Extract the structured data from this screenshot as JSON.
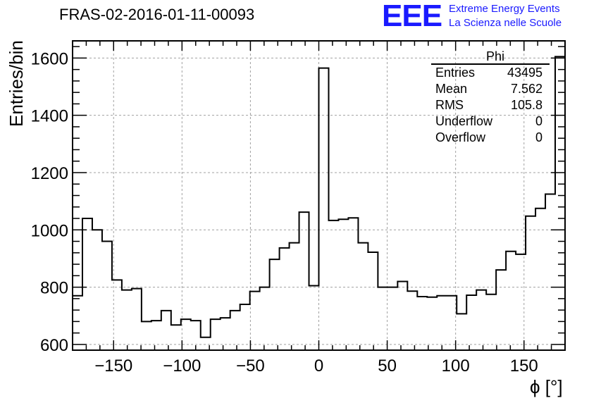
{
  "title": "FRAS-02-2016-01-11-00093",
  "logo": {
    "text": "EEE",
    "line1": "Extreme Energy Events",
    "line2": "La Scienza nelle Scuole"
  },
  "stats": {
    "title": "Phi",
    "rows": [
      {
        "label": "Entries",
        "value": "43495"
      },
      {
        "label": "Mean",
        "value": "7.562"
      },
      {
        "label": "RMS",
        "value": "105.8"
      },
      {
        "label": "Underflow",
        "value": "0"
      },
      {
        "label": "Overflow",
        "value": "0"
      }
    ]
  },
  "chart_data": {
    "type": "bar",
    "style": "step-histogram",
    "title": "FRAS-02-2016-01-11-00093",
    "xlabel": "ϕ [°]",
    "ylabel": "Entries/bin",
    "xlim": [
      -180,
      180
    ],
    "ylim": [
      580,
      1660
    ],
    "grid": true,
    "bin_width": 7.2,
    "bin_edges_start": -180,
    "x_ticks": [
      -150,
      -100,
      -50,
      0,
      50,
      100,
      150
    ],
    "y_ticks": [
      600,
      800,
      1000,
      1200,
      1400,
      1600
    ],
    "values": [
      770,
      1040,
      1000,
      960,
      825,
      790,
      795,
      680,
      683,
      718,
      668,
      688,
      683,
      625,
      688,
      693,
      718,
      740,
      785,
      800,
      897,
      937,
      955,
      1062,
      805,
      1565,
      1033,
      1037,
      1042,
      955,
      922,
      800,
      800,
      820,
      786,
      767,
      765,
      770,
      770,
      707,
      772,
      790,
      775,
      860,
      925,
      915,
      1048,
      1075,
      1125,
      1605
    ]
  }
}
